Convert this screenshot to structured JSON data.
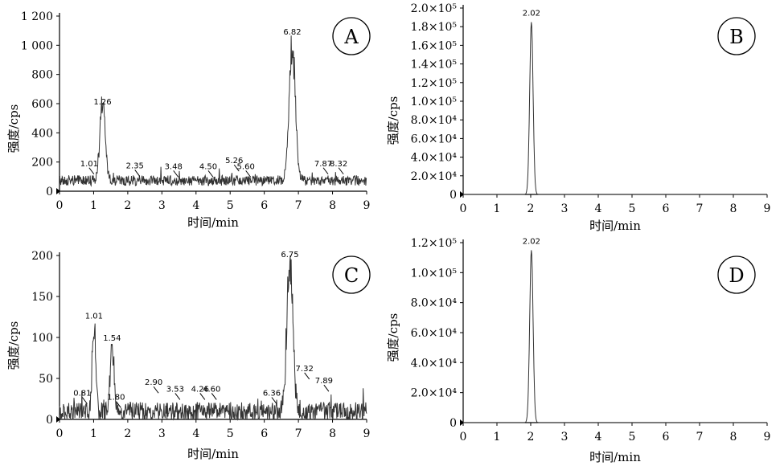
{
  "chart_data": [
    {
      "type": "line",
      "panel": "A",
      "xlabel": "时间/min",
      "ylabel": "强度/cps",
      "xlim": [
        0,
        9
      ],
      "ylim": [
        0,
        1200
      ],
      "x_ticks": [
        "0",
        "1",
        "2",
        "3",
        "4",
        "5",
        "6",
        "7",
        "8",
        "9"
      ],
      "y_ticks": [
        "0",
        "200",
        "400",
        "600",
        "800",
        "1 000",
        "1 200"
      ],
      "baseline": 70,
      "noise": 35,
      "peaks": [
        {
          "x": 1.26,
          "label": "1.26",
          "height": 550,
          "width": 0.08
        },
        {
          "x": 6.82,
          "label": "6.82",
          "height": 1030,
          "width": 0.09
        }
      ],
      "annotations": [
        {
          "x": 1.01,
          "label": "1.01",
          "y": 150
        },
        {
          "x": 2.35,
          "label": "2.35",
          "y": 135
        },
        {
          "x": 3.48,
          "label": "3.48",
          "y": 130
        },
        {
          "x": 4.5,
          "label": "4.50",
          "y": 130
        },
        {
          "x": 5.26,
          "label": "5.26",
          "y": 170
        },
        {
          "x": 5.6,
          "label": "5.60",
          "y": 130
        },
        {
          "x": 7.87,
          "label": "7.87",
          "y": 150
        },
        {
          "x": 8.32,
          "label": "8.32",
          "y": 150
        }
      ]
    },
    {
      "type": "line",
      "panel": "B",
      "xlabel": "时间/min",
      "ylabel": "强度/cps",
      "xlim": [
        0,
        9
      ],
      "ylim": [
        0,
        200000
      ],
      "x_ticks": [
        "0",
        "1",
        "2",
        "3",
        "4",
        "5",
        "6",
        "7",
        "8",
        "9"
      ],
      "y_ticks": [
        "0",
        "2.0×10⁴",
        "4.0×10⁴",
        "6.0×10⁴",
        "8.0×10⁴",
        "1.0×10⁵",
        "1.2×10⁵",
        "1.4×10⁵",
        "1.6×10⁵",
        "1.8×10⁵",
        "2.0×10⁵"
      ],
      "baseline": 0,
      "noise": 0,
      "peaks": [
        {
          "x": 2.02,
          "label": "2.02",
          "height": 185000,
          "width": 0.05
        }
      ],
      "annotations": []
    },
    {
      "type": "line",
      "panel": "C",
      "xlabel": "时间/min",
      "ylabel": "强度/cps",
      "xlim": [
        0,
        9
      ],
      "ylim": [
        0,
        200
      ],
      "x_ticks": [
        "0",
        "1",
        "2",
        "3",
        "4",
        "5",
        "6",
        "7",
        "8",
        "9"
      ],
      "y_ticks": [
        "0",
        "50",
        "100",
        "150",
        "200"
      ],
      "baseline": 8,
      "noise": 12,
      "peaks": [
        {
          "x": 1.01,
          "label": "1.01",
          "height": 115,
          "width": 0.05
        },
        {
          "x": 1.54,
          "label": "1.54",
          "height": 88,
          "width": 0.06
        },
        {
          "x": 6.75,
          "label": "6.75",
          "height": 190,
          "width": 0.09
        }
      ],
      "annotations": [
        {
          "x": 0.81,
          "label": "0.81",
          "y": 25
        },
        {
          "x": 1.8,
          "label": "1.80",
          "y": 20
        },
        {
          "x": 2.9,
          "label": "2.90",
          "y": 38
        },
        {
          "x": 3.53,
          "label": "3.53",
          "y": 30
        },
        {
          "x": 4.26,
          "label": "4.26",
          "y": 30
        },
        {
          "x": 4.6,
          "label": "4.60",
          "y": 30
        },
        {
          "x": 6.36,
          "label": "6.36",
          "y": 25
        },
        {
          "x": 7.32,
          "label": "7.32",
          "y": 55
        },
        {
          "x": 7.89,
          "label": "7.89",
          "y": 40
        }
      ]
    },
    {
      "type": "line",
      "panel": "D",
      "xlabel": "时间/min",
      "ylabel": "强度/cps",
      "xlim": [
        0,
        9
      ],
      "ylim": [
        0,
        120000
      ],
      "x_ticks": [
        "0",
        "1",
        "2",
        "3",
        "4",
        "5",
        "6",
        "7",
        "8",
        "9"
      ],
      "y_ticks": [
        "0",
        "2.0×10⁴",
        "4.0×10⁴",
        "6.0×10⁴",
        "8.0×10⁴",
        "1.0×10⁵",
        "1.2×10⁵"
      ],
      "baseline": 0,
      "noise": 0,
      "peaks": [
        {
          "x": 2.02,
          "label": "2.02",
          "height": 115000,
          "width": 0.05
        }
      ],
      "annotations": []
    }
  ]
}
